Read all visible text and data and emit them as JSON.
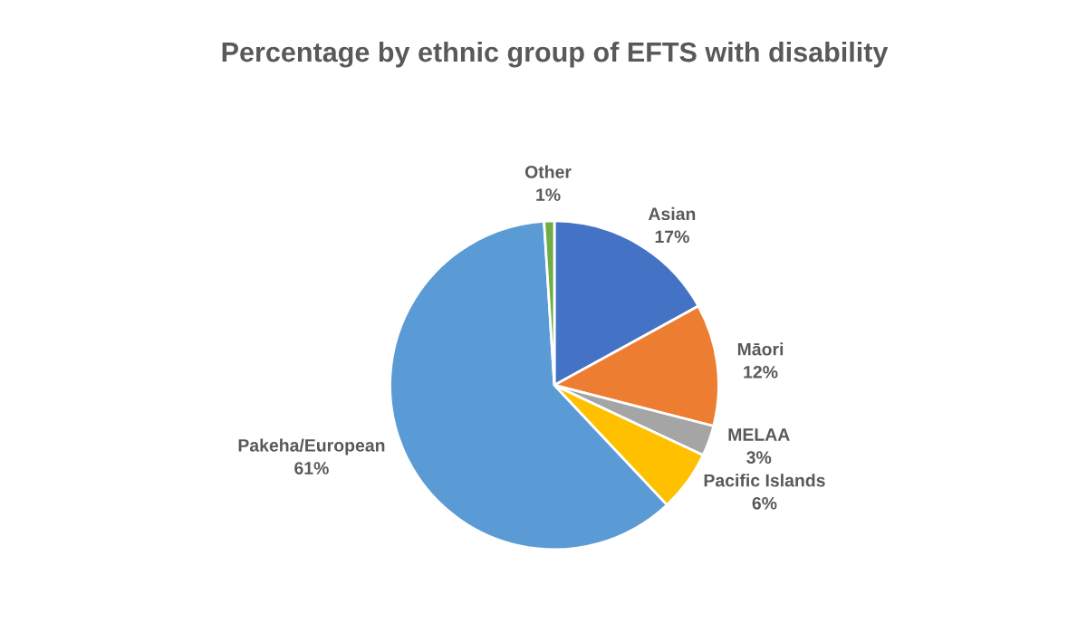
{
  "chart_data": {
    "type": "pie",
    "title": "Percentage by ethnic group of EFTS with disability",
    "categories": [
      "Asian",
      "Māori",
      "MELAA",
      "Pacific Islands",
      "Pakeha/European",
      "Other"
    ],
    "values": [
      17,
      12,
      3,
      6,
      61,
      1
    ],
    "value_labels": [
      "17%",
      "12%",
      "3%",
      "6%",
      "61%",
      "1%"
    ],
    "colors": [
      "#4472c4",
      "#ed7d31",
      "#a5a5a5",
      "#ffc000",
      "#5b9bd5",
      "#70ad47"
    ],
    "legend": false
  }
}
